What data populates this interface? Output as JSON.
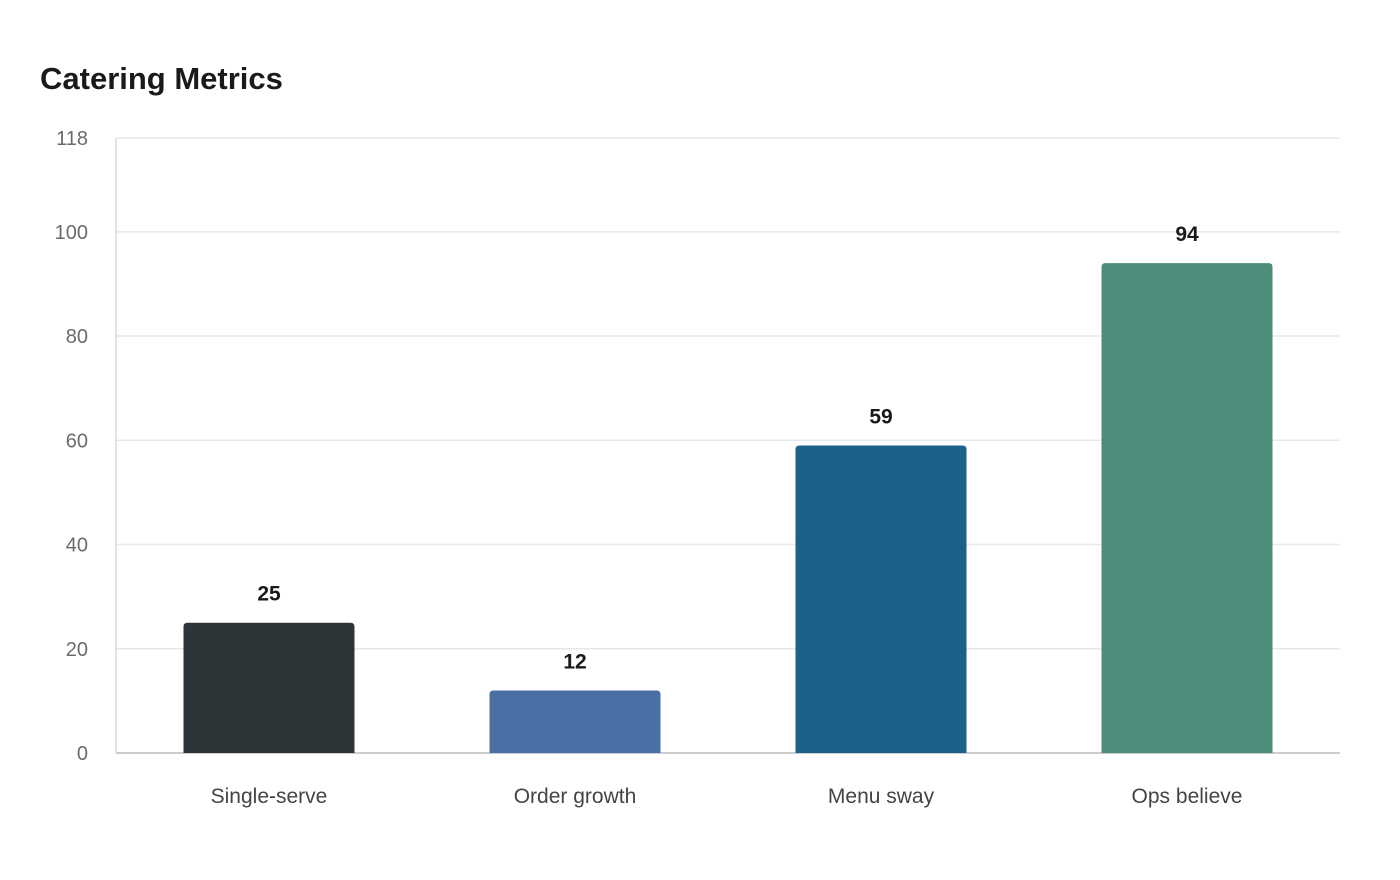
{
  "chart_data": {
    "type": "bar",
    "title": "Catering Metrics",
    "xlabel": "",
    "ylabel": "",
    "categories": [
      "Single-serve",
      "Order growth",
      "Menu sway",
      "Ops believe"
    ],
    "values": [
      25,
      12,
      59,
      94
    ],
    "bar_colors": [
      "#2e3538",
      "#4a6fa5",
      "#1a6289",
      "#4e8c7b"
    ],
    "ylim": [
      0,
      118
    ],
    "yticks": [
      0,
      20,
      40,
      60,
      80,
      100,
      118
    ],
    "grid": true,
    "legend": "none",
    "data_labels": true
  }
}
